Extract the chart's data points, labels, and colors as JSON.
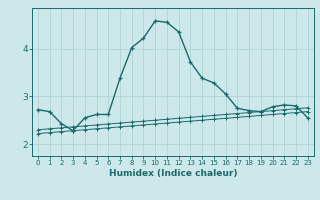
{
  "xlabel": "Humidex (Indice chaleur)",
  "x_ticks": [
    0,
    1,
    2,
    3,
    4,
    5,
    6,
    7,
    8,
    9,
    10,
    11,
    12,
    13,
    14,
    15,
    16,
    17,
    18,
    19,
    20,
    21,
    22,
    23
  ],
  "y_ticks": [
    2,
    3,
    4
  ],
  "ylim": [
    1.75,
    4.85
  ],
  "xlim": [
    -0.5,
    23.5
  ],
  "bg_color": "#cce8ea",
  "line_color": "#1a6b6b",
  "grid_color": "#afd4d4",
  "line1_x": [
    0,
    1,
    2,
    3,
    4,
    5,
    6,
    7,
    8,
    9,
    10,
    11,
    12,
    13,
    14,
    15,
    16,
    17,
    18,
    19,
    20,
    21,
    22,
    23
  ],
  "line1_y": [
    2.72,
    2.68,
    2.43,
    2.28,
    2.55,
    2.62,
    2.62,
    3.38,
    4.02,
    4.22,
    4.58,
    4.55,
    4.35,
    3.72,
    3.38,
    3.28,
    3.05,
    2.75,
    2.7,
    2.68,
    2.78,
    2.82,
    2.8,
    2.55
  ],
  "line2_x": [
    0,
    1,
    2,
    3,
    4,
    5,
    6,
    7,
    8,
    9,
    10,
    11,
    12,
    13,
    14,
    15,
    16,
    17,
    18,
    19,
    20,
    21,
    22,
    23
  ],
  "line2_y": [
    2.3,
    2.32,
    2.34,
    2.36,
    2.38,
    2.4,
    2.42,
    2.44,
    2.46,
    2.48,
    2.5,
    2.52,
    2.54,
    2.56,
    2.58,
    2.6,
    2.62,
    2.64,
    2.66,
    2.68,
    2.7,
    2.72,
    2.74,
    2.76
  ],
  "line3_x": [
    0,
    1,
    2,
    3,
    4,
    5,
    6,
    7,
    8,
    9,
    10,
    11,
    12,
    13,
    14,
    15,
    16,
    17,
    18,
    19,
    20,
    21,
    22,
    23
  ],
  "line3_y": [
    2.22,
    2.24,
    2.26,
    2.28,
    2.3,
    2.32,
    2.34,
    2.36,
    2.38,
    2.4,
    2.42,
    2.44,
    2.46,
    2.48,
    2.5,
    2.52,
    2.54,
    2.56,
    2.58,
    2.6,
    2.62,
    2.64,
    2.66,
    2.68
  ]
}
